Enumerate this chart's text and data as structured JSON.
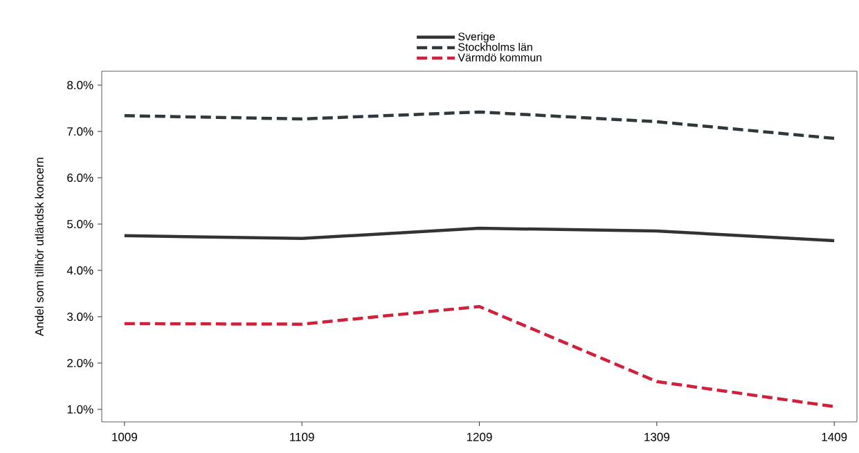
{
  "chart_data": {
    "type": "line",
    "ylabel": "Andel som tillhör utländsk koncern",
    "categories": [
      "1009",
      "1109",
      "1209",
      "1309",
      "1409"
    ],
    "series": [
      {
        "name": "Sverige",
        "color": "#333333",
        "line_style": "solid",
        "values": [
          4.75,
          4.69,
          4.91,
          4.85,
          4.64
        ]
      },
      {
        "name": "Stockholms län",
        "color": "#2f393d",
        "line_style": "dashed",
        "values": [
          7.34,
          7.27,
          7.42,
          7.21,
          6.85
        ]
      },
      {
        "name": "Värmdö kommun",
        "color": "#d0203a",
        "line_style": "dashed",
        "values": [
          2.85,
          2.84,
          3.22,
          1.6,
          1.06
        ]
      }
    ],
    "ylim": [
      0.73,
      8.3
    ],
    "yticks": [
      {
        "value": 1,
        "label": "1.0%"
      },
      {
        "value": 2,
        "label": "2.0%"
      },
      {
        "value": 3,
        "label": "3.0%"
      },
      {
        "value": 4,
        "label": "4.0%"
      },
      {
        "value": 5,
        "label": "5.0%"
      },
      {
        "value": 6,
        "label": "6.0%"
      },
      {
        "value": 7,
        "label": "7.0%"
      },
      {
        "value": 8,
        "label": "8.0%"
      }
    ],
    "grid": false,
    "legend": "top",
    "marker": "none"
  }
}
